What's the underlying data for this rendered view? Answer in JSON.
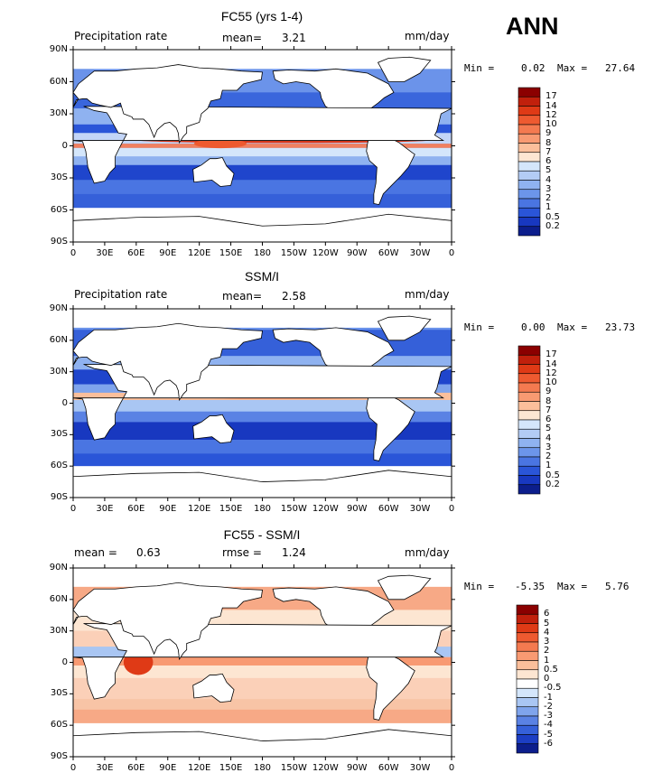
{
  "figure_label": "ANN",
  "x_ticks": [
    "0",
    "30E",
    "60E",
    "90E",
    "120E",
    "150E",
    "180",
    "150W",
    "120W",
    "90W",
    "60W",
    "30W",
    "0"
  ],
  "y_ticks": [
    "90N",
    "60N",
    "30N",
    "0",
    "30S",
    "60S",
    "90S"
  ],
  "panels": [
    {
      "title": "FC55 (yrs 1-4)",
      "left_label": "Precipitation rate",
      "mean_label": "mean=",
      "mean_value": "3.21",
      "units": "mm/day",
      "min_label": "Min =",
      "min_value": "0.02",
      "max_label": "Max =",
      "max_value": "27.64",
      "colorbar_labels": [
        "17",
        "14",
        "12",
        "10",
        "9",
        "8",
        "7",
        "6",
        "5",
        "4",
        "3",
        "2",
        "1",
        "0.5",
        "0.2"
      ],
      "colorbar_colors": [
        "#8b0000",
        "#c1200c",
        "#df3a16",
        "#ee5a30",
        "#f47a50",
        "#f89a72",
        "#fbbf9b",
        "#fde6d2",
        "#d4e6fb",
        "#b3ccf5",
        "#8fb2f0",
        "#6c95ea",
        "#4a75e2",
        "#2a55d8",
        "#1838c0",
        "#0c1e8c"
      ]
    },
    {
      "title": "SSM/I",
      "left_label": "Precipitation rate",
      "mean_label": "mean=",
      "mean_value": "2.58",
      "units": "mm/day",
      "min_label": "Min =",
      "min_value": "0.00",
      "max_label": "Max =",
      "max_value": "23.73",
      "colorbar_labels": [
        "17",
        "14",
        "12",
        "10",
        "9",
        "8",
        "7",
        "6",
        "5",
        "4",
        "3",
        "2",
        "1",
        "0.5",
        "0.2"
      ],
      "colorbar_colors": [
        "#8b0000",
        "#c1200c",
        "#df3a16",
        "#ee5a30",
        "#f47a50",
        "#f89a72",
        "#fbbf9b",
        "#fde6d2",
        "#d4e6fb",
        "#b3ccf5",
        "#8fb2f0",
        "#6c95ea",
        "#4a75e2",
        "#2a55d8",
        "#1838c0",
        "#0c1e8c"
      ]
    },
    {
      "title": "FC55 - SSM/I",
      "left_label": "mean =",
      "left_value": "0.63",
      "mid_label": "rmse =",
      "mid_value": "1.24",
      "units": "mm/day",
      "min_label": "Min =",
      "min_value": "-5.35",
      "max_label": "Max =",
      "max_value": "5.76",
      "colorbar_labels": [
        "6",
        "5",
        "4",
        "3",
        "2",
        "1",
        "0.5",
        "0",
        "-0.5",
        "-1",
        "-2",
        "-3",
        "-4",
        "-5",
        "-6"
      ],
      "colorbar_colors": [
        "#8b0000",
        "#c1200c",
        "#df3a16",
        "#ee5a30",
        "#f47a50",
        "#f89a72",
        "#fbbf9b",
        "#fde6d2",
        "#ffffff",
        "#d4e6fb",
        "#a9c6f3",
        "#7fa4ec",
        "#5a82e4",
        "#3560d9",
        "#1c3ec4",
        "#0c1e8c"
      ]
    }
  ]
}
